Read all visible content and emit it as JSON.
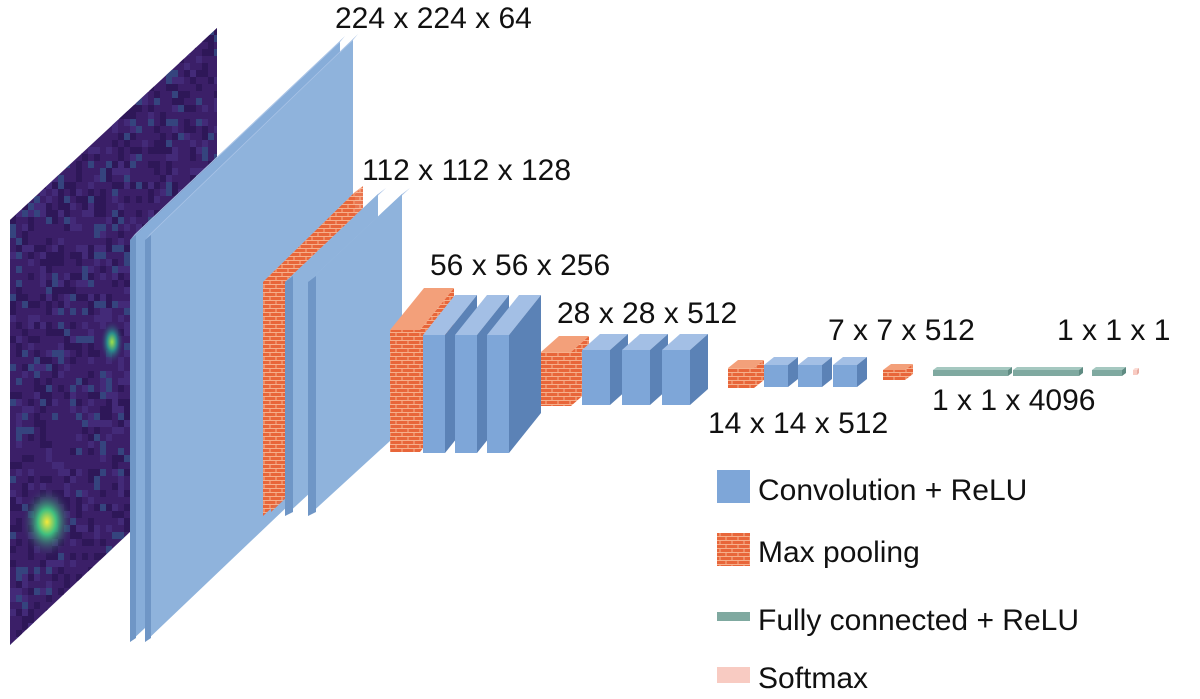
{
  "dimension_labels": [
    "224 x 224 x 64",
    "112 x 112 x 128",
    "56 x 56 x 256",
    "28 x 28 x 512",
    "7 x 7 x 512",
    "1 x 1 x 1",
    "14 x 14 x 512",
    "1 x 1 x 4096"
  ],
  "legend": [
    "Convolution + ReLU",
    "Max pooling",
    "Fully connected + ReLU",
    "Softmax"
  ]
}
